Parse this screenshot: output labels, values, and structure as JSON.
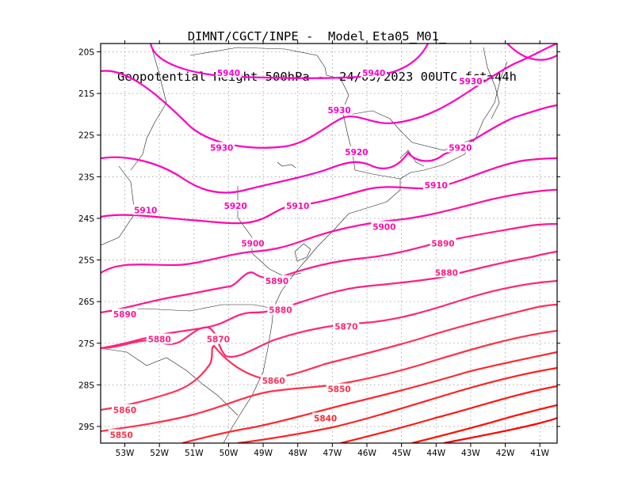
{
  "title": {
    "line1": "DIMNT/CGCT/INPE -  Model Eta05_M01_",
    "line2": "Geopotential Height 500hPa -  24/09/2023 00UTC fct=44h"
  },
  "lon_labels": [
    "53W",
    "52W",
    "51W",
    "50W",
    "49W",
    "48W",
    "47W",
    "46W",
    "45W",
    "44W",
    "43W",
    "42W",
    "41W"
  ],
  "lat_labels": [
    "20S",
    "21S",
    "22S",
    "23S",
    "24S",
    "25S",
    "26S",
    "27S",
    "28S",
    "29S"
  ],
  "chart_data": {
    "type": "contour-map",
    "variable": "Geopotential Height 500hPa",
    "lon_range": [
      -53.7,
      -40.5
    ],
    "lat_range": [
      -29.4,
      -19.8
    ],
    "grid": true,
    "contours": [
      {
        "value": 5940,
        "label": "5940",
        "color": "#ff00c8",
        "labels": [
          [
            -50.0,
            -20.5
          ],
          [
            -45.8,
            -20.5
          ]
        ]
      },
      {
        "value": 5930,
        "label": "5930",
        "color": "#ff00c0",
        "labels": [
          [
            -50.2,
            -22.3
          ],
          [
            -46.8,
            -21.4
          ],
          [
            -43.0,
            -20.7
          ]
        ]
      },
      {
        "value": 5920,
        "label": "5920",
        "color": "#ff00b8",
        "labels": [
          [
            -49.8,
            -23.7
          ],
          [
            -46.3,
            -22.4
          ],
          [
            -43.3,
            -22.3
          ]
        ]
      },
      {
        "value": 5910,
        "label": "5910",
        "color": "#ff08a8",
        "labels": [
          [
            -52.4,
            -23.8
          ],
          [
            -48.0,
            -23.7
          ],
          [
            -44.0,
            -23.2
          ]
        ]
      },
      {
        "value": 5900,
        "label": "5900",
        "color": "#ff10a0",
        "labels": [
          [
            -49.3,
            -24.6
          ],
          [
            -45.5,
            -24.2
          ]
        ]
      },
      {
        "value": 5890,
        "label": "5890",
        "color": "#ff1890",
        "labels": [
          [
            -53.0,
            -26.3
          ],
          [
            -48.6,
            -25.5
          ],
          [
            -43.8,
            -24.6
          ]
        ]
      },
      {
        "value": 5880,
        "label": "5880",
        "color": "#ff2080",
        "labels": [
          [
            -52.0,
            -26.9
          ],
          [
            -48.5,
            -26.2
          ],
          [
            -43.7,
            -25.3
          ]
        ]
      },
      {
        "value": 5870,
        "label": "5870",
        "color": "#ff2870",
        "labels": [
          [
            -50.3,
            -26.9
          ],
          [
            -46.6,
            -26.6
          ]
        ]
      },
      {
        "value": 5860,
        "label": "5860",
        "color": "#ff3058",
        "labels": [
          [
            -53.0,
            -28.6
          ],
          [
            -48.7,
            -27.9
          ]
        ]
      },
      {
        "value": 5850,
        "label": "5850",
        "color": "#ff3048",
        "labels": [
          [
            -53.1,
            -29.2
          ],
          [
            -46.8,
            -28.1
          ]
        ]
      },
      {
        "value": 5840,
        "label": "5840",
        "color": "#ff2830",
        "labels": [
          [
            -47.2,
            -28.8
          ]
        ]
      },
      {
        "value": 5830,
        "label": "",
        "color": "#ff2020",
        "labels": []
      },
      {
        "value": 5820,
        "label": "",
        "color": "#ff1810",
        "labels": []
      },
      {
        "value": 5810,
        "label": "",
        "color": "#ff1000",
        "labels": []
      },
      {
        "value": 5800,
        "label": "",
        "color": "#ff0000",
        "labels": []
      }
    ]
  }
}
